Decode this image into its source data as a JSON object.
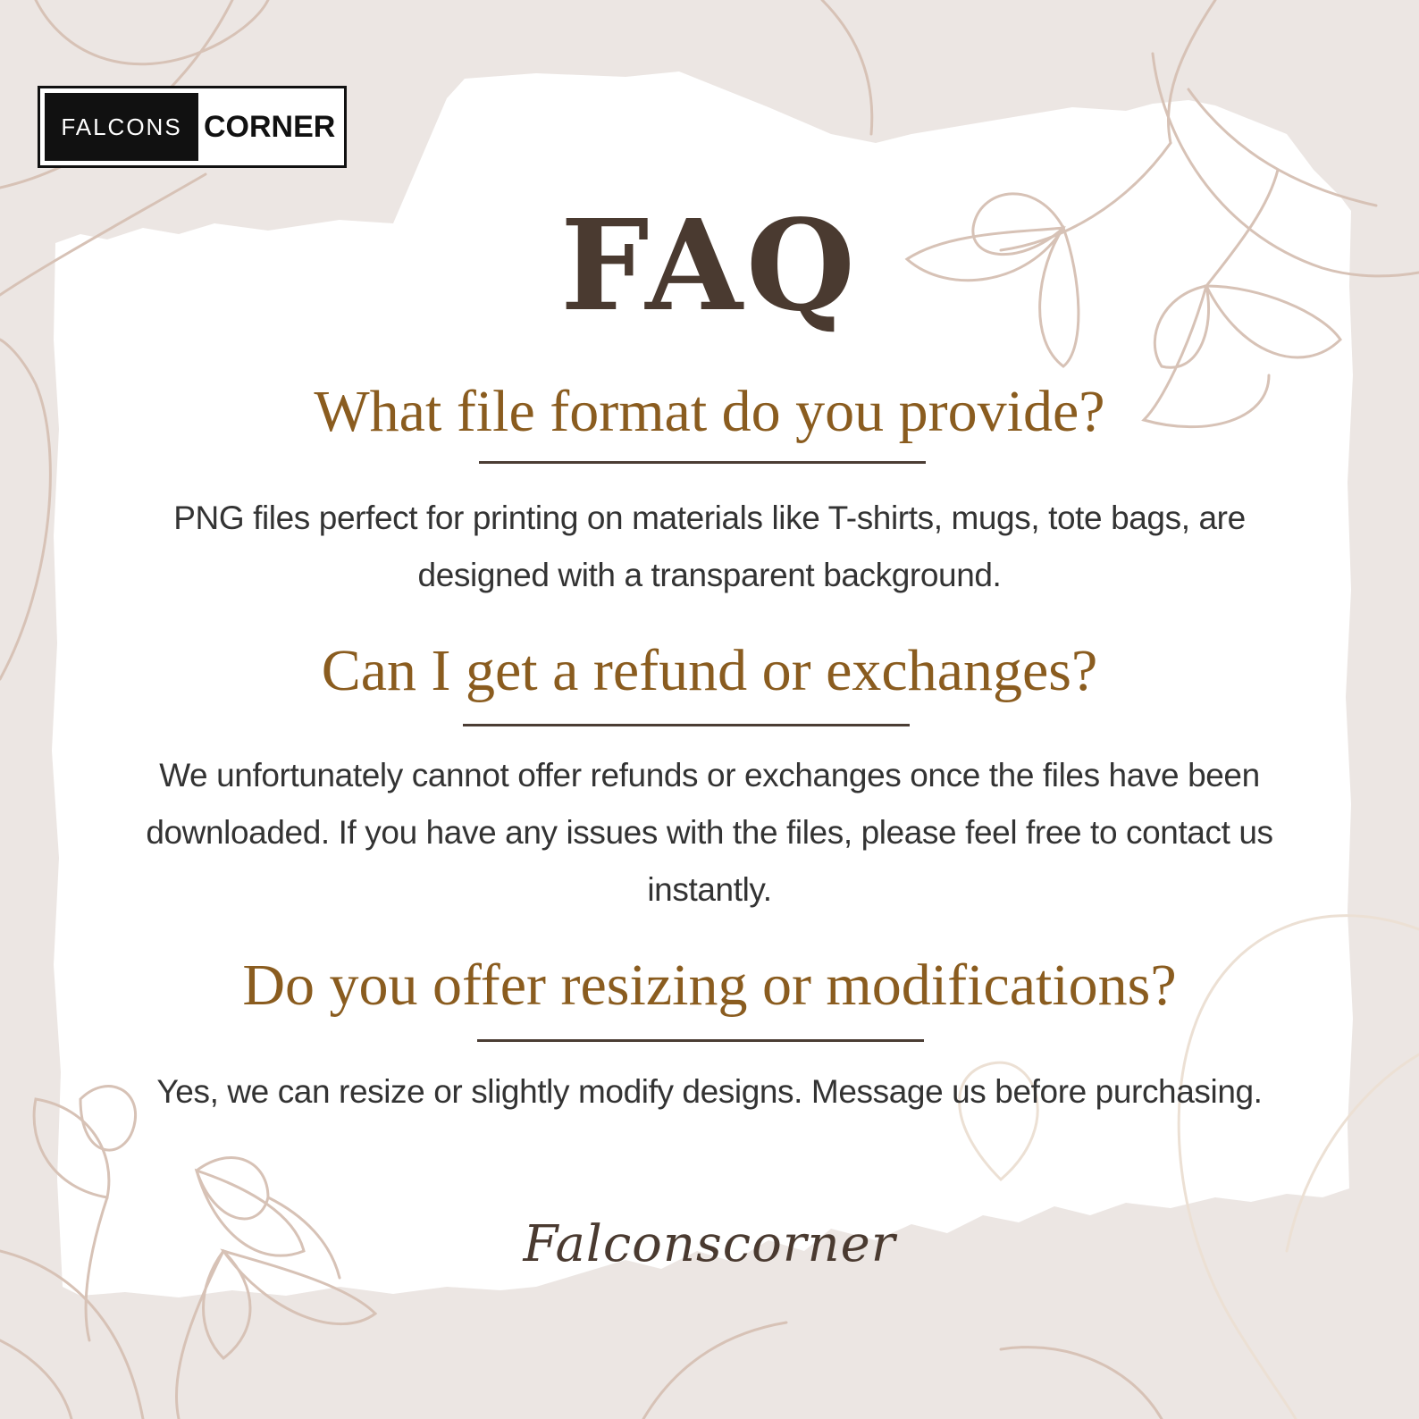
{
  "logo": {
    "left_text": "FALCONS",
    "right_text": "CORNER"
  },
  "title": "FAQ",
  "faq": [
    {
      "question": "What file format do you provide?",
      "answer": "PNG files perfect for printing on materials like T-shirts, mugs, tote bags, are designed with a transparent background."
    },
    {
      "question": "Can I get a refund or exchanges?",
      "answer": "We unfortunately cannot offer refunds or exchanges once the files have been downloaded. If you have any issues with the files, please feel free to contact us instantly."
    },
    {
      "question": "Do you offer resizing or modifications?",
      "answer": "Yes, we can resize or slightly modify designs. Message us before purchasing."
    }
  ],
  "signature": "Falconscorner",
  "colors": {
    "background": "#ece6e3",
    "paper": "#ffffff",
    "title": "#4a3a30",
    "question": "#8a5c1f",
    "answer": "#333333",
    "line_art": "#d7c2b6"
  }
}
